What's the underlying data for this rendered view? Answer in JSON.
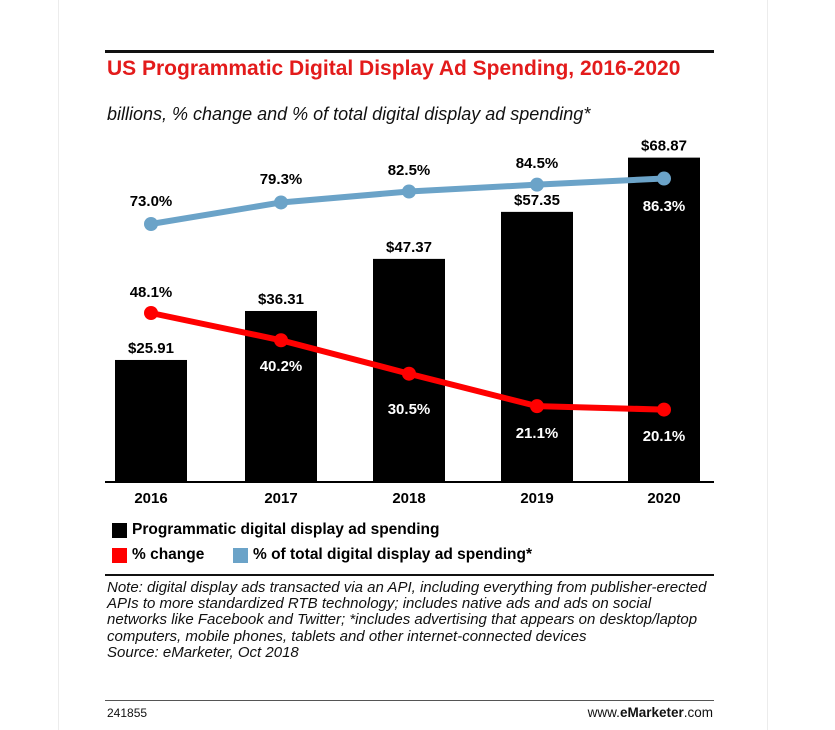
{
  "header": {
    "title": "US Programmatic Digital Display Ad Spending, 2016-2020",
    "subtitle": "billions, % change and % of total digital display ad spending*"
  },
  "chart_data": {
    "type": "bar",
    "categories": [
      "2016",
      "2017",
      "2018",
      "2019",
      "2020"
    ],
    "series": [
      {
        "name": "Programmatic digital display ad spending",
        "type": "bar",
        "color": "#000000",
        "values": [
          25.91,
          36.31,
          47.37,
          57.35,
          68.87
        ],
        "labels": [
          "$25.91",
          "$36.31",
          "$47.37",
          "$57.35",
          "$68.87"
        ]
      },
      {
        "name": "% change",
        "type": "line",
        "color": "#ff0000",
        "values": [
          48.1,
          40.2,
          30.5,
          21.1,
          20.1
        ],
        "labels": [
          "48.1%",
          "40.2%",
          "30.5%",
          "21.1%",
          "20.1%"
        ]
      },
      {
        "name": "% of total digital display ad spending*",
        "type": "line",
        "color": "#6ba3c8",
        "values": [
          73.0,
          79.3,
          82.5,
          84.5,
          86.3
        ],
        "labels": [
          "73.0%",
          "79.3%",
          "82.5%",
          "84.5%",
          "86.3%"
        ]
      }
    ],
    "legend": "bottom",
    "grid": false
  },
  "legend": {
    "bar": "Programmatic digital display ad spending",
    "change": "% change",
    "share": "% of total digital display ad spending*"
  },
  "note": {
    "text": "Note: digital display ads transacted via an API, including everything from publisher-erected APIs to more standardized RTB technology; includes native ads and ads on social networks like Facebook and Twitter; *includes advertising that appears on desktop/laptop computers, mobile phones, tablets and other internet-connected devices",
    "source": "Source: eMarketer, Oct 2018"
  },
  "footer": {
    "chart_id": "241855",
    "brand_prefix": "www.",
    "brand_name": "eMarketer",
    "brand_suffix": ".com"
  }
}
